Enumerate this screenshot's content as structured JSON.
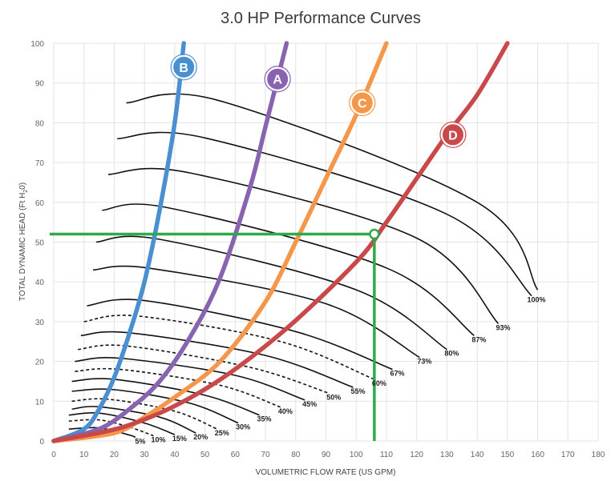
{
  "chart_data": {
    "type": "line",
    "title": "3.0 HP  Performance Curves",
    "xlabel": "VOLUMETRIC FLOW RATE (US GPM)",
    "ylabel": "TOTAL DYNAMIC HEAD (Ft H",
    "ylabel_sub": "2",
    "ylabel_end": "0)",
    "xlim": [
      0,
      180
    ],
    "ylim": [
      0,
      100
    ],
    "xticks": [
      "0",
      "10",
      "20",
      "30",
      "40",
      "50",
      "60",
      "70",
      "80",
      "90",
      "100",
      "110",
      "120",
      "130",
      "140",
      "150",
      "160",
      "170",
      "180"
    ],
    "yticks": [
      "0",
      "10",
      "20",
      "30",
      "40",
      "50",
      "60",
      "70",
      "80",
      "90",
      "100"
    ],
    "grid": true,
    "pump_curves": [
      {
        "name": "B",
        "color": "#4a90d0",
        "x": [
          0,
          10,
          15,
          20,
          25,
          30,
          35,
          40,
          43
        ],
        "y": [
          0,
          3,
          8,
          16,
          27,
          40,
          58,
          80,
          100
        ],
        "badge_x": 43,
        "badge_y": 94
      },
      {
        "name": "A",
        "color": "#8763b0",
        "x": [
          0,
          15,
          25,
          35,
          45,
          55,
          65,
          70,
          77
        ],
        "y": [
          0,
          3,
          8,
          15,
          26,
          41,
          64,
          79,
          100
        ],
        "badge_x": 74,
        "badge_y": 91
      },
      {
        "name": "C",
        "color": "#f5974a",
        "x": [
          0,
          20,
          30,
          40,
          55,
          70,
          80,
          90,
          100,
          110
        ],
        "y": [
          0,
          2,
          6,
          11,
          20,
          35,
          50,
          66,
          82,
          100
        ],
        "badge_x": 102,
        "badge_y": 85
      },
      {
        "name": "D",
        "color": "#c9484a",
        "x": [
          0,
          25,
          50,
          75,
          100,
          110,
          120,
          130,
          140,
          150
        ],
        "y": [
          0,
          4,
          13,
          27,
          45,
          55,
          66,
          77,
          87,
          100
        ],
        "badge_x": 132,
        "badge_y": 77
      }
    ],
    "efficiency_curves": [
      {
        "label": "5%",
        "dashed": false,
        "x": [
          5,
          15,
          25,
          27
        ],
        "y": [
          3,
          3.3,
          1.5,
          0.9
        ]
      },
      {
        "label": "10%",
        "dashed": true,
        "x": [
          5,
          15,
          25,
          33
        ],
        "y": [
          5,
          5.3,
          3.5,
          1.3
        ]
      },
      {
        "label": "15%",
        "dashed": false,
        "x": [
          5,
          15,
          30,
          40
        ],
        "y": [
          6.5,
          7,
          4.5,
          1.6
        ]
      },
      {
        "label": "20%",
        "dashed": false,
        "x": [
          6,
          15,
          35,
          47
        ],
        "y": [
          8,
          8.6,
          6,
          2
        ]
      },
      {
        "label": "25%",
        "dashed": true,
        "x": [
          6,
          18,
          40,
          54
        ],
        "y": [
          10,
          10.5,
          7.5,
          3
        ]
      },
      {
        "label": "30%",
        "dashed": false,
        "x": [
          6,
          20,
          45,
          61
        ],
        "y": [
          12.5,
          12.9,
          9.5,
          4.5
        ]
      },
      {
        "label": "35%",
        "dashed": false,
        "x": [
          6,
          20,
          50,
          68
        ],
        "y": [
          15,
          15.5,
          11.5,
          6.5
        ]
      },
      {
        "label": "40%",
        "dashed": true,
        "x": [
          7,
          22,
          55,
          75
        ],
        "y": [
          17.5,
          18,
          14,
          8.5
        ]
      },
      {
        "label": "45%",
        "dashed": false,
        "x": [
          7,
          22,
          60,
          83
        ],
        "y": [
          20,
          20.8,
          16.5,
          10.3
        ]
      },
      {
        "label": "50%",
        "dashed": true,
        "x": [
          8,
          24,
          65,
          91
        ],
        "y": [
          23,
          23.9,
          18.5,
          12
        ]
      },
      {
        "label": "55%",
        "dashed": false,
        "x": [
          9,
          25,
          70,
          99
        ],
        "y": [
          26.5,
          27.2,
          21.5,
          13.5
        ]
      },
      {
        "label": "60%",
        "dashed": true,
        "x": [
          10,
          28,
          75,
          106
        ],
        "y": [
          30,
          31.4,
          25,
          15.5
        ]
      },
      {
        "label": "67%",
        "dashed": false,
        "x": [
          11,
          30,
          80,
          112
        ],
        "y": [
          34,
          35.3,
          27.5,
          18
        ]
      },
      {
        "label": "73%",
        "dashed": false,
        "x": [
          13,
          32,
          90,
          121
        ],
        "y": [
          43,
          43.4,
          34.5,
          21
        ]
      },
      {
        "label": "80%",
        "dashed": false,
        "x": [
          14,
          35,
          100,
          130
        ],
        "y": [
          50,
          50.7,
          38,
          23
        ]
      },
      {
        "label": "87%",
        "dashed": false,
        "x": [
          16,
          38,
          110,
          139
        ],
        "y": [
          58,
          58.6,
          43.5,
          26.5
        ]
      },
      {
        "label": "93%",
        "dashed": false,
        "x": [
          18,
          45,
          120,
          147
        ],
        "y": [
          67,
          67.4,
          51,
          29.5
        ]
      },
      {
        "label": "100%",
        "dashed": false,
        "x": [
          21,
          50,
          130,
          158
        ],
        "y": [
          76,
          76.2,
          57,
          36.5
        ]
      },
      {
        "label": "",
        "dashed": false,
        "x": [
          24,
          55,
          140,
          160
        ],
        "y": [
          85,
          85.5,
          60,
          38
        ]
      }
    ],
    "highlight": {
      "color": "#2eaa4a",
      "x": 106,
      "y": 52
    }
  }
}
